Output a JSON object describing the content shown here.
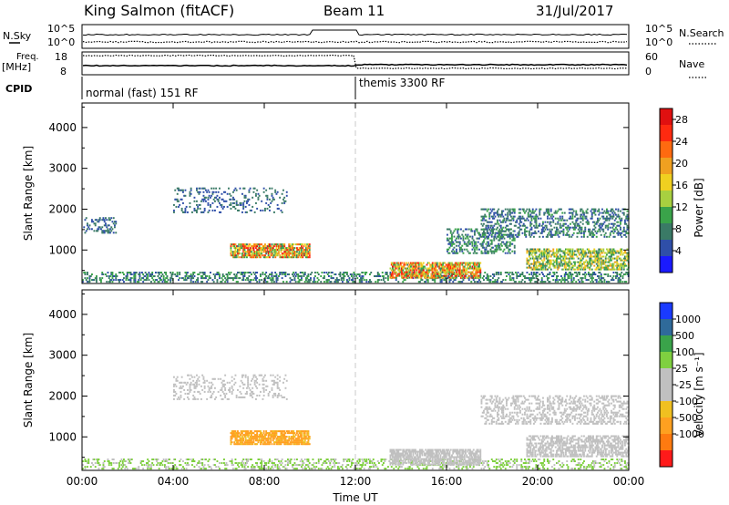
{
  "header": {
    "site": "King Salmon (fitACF)",
    "beam": "Beam 11",
    "date": "31/Jul/2017"
  },
  "summary_panels": {
    "left_labels": {
      "nsky": "N.Sky",
      "freq": "Freq.",
      "freq_unit": "[MHz]",
      "cpid": "CPID"
    },
    "right_labels": {
      "nsearch": "N.Search",
      "nave": "Nave"
    },
    "noise_ticks_left": [
      "10^5",
      "10^0"
    ],
    "noise_ticks_right": [
      "10^5",
      "10^0"
    ],
    "freq_ticks": [
      "18",
      "8"
    ],
    "nave_ticks": [
      "60",
      "0"
    ],
    "cpid_segments": [
      {
        "label": "normal (fast) 151 RF",
        "start_hour": 0
      },
      {
        "label": "themis 3300 RF",
        "start_hour": 12
      }
    ]
  },
  "colors": {
    "axis": "#000000",
    "noon_line": "#c8c8c8",
    "power_scale": [
      "#1a1aff",
      "#2f4fa8",
      "#3a7a66",
      "#3aa34a",
      "#a8d040",
      "#f0d020",
      "#f0a020",
      "#ff6a10",
      "#ff2a10",
      "#e01010"
    ],
    "velocity_scale": [
      "#ff1a1a",
      "#ff7a10",
      "#ffa020",
      "#f0c020",
      "#c0c0c0",
      "#c0c0c0",
      "#7fd040",
      "#3aa34a",
      "#2f6a9a",
      "#1a3aff"
    ]
  },
  "chart_data": [
    {
      "type": "heatmap",
      "name": "power",
      "ylabel": "Slant Range [km]",
      "xlabel": "",
      "x_ticks": [
        "00:00",
        "04:00",
        "08:00",
        "12:00",
        "16:00",
        "20:00",
        "00:00"
      ],
      "y_ticks": [
        "1000",
        "2000",
        "3000",
        "4000"
      ],
      "xlim_hours": [
        0,
        24
      ],
      "ylim_km": [
        180,
        4600
      ],
      "colorbar_label": "Power [dB]",
      "colorbar_ticks": [
        "4",
        "8",
        "12",
        "16",
        "20",
        "24",
        "28"
      ],
      "colorbar_range": [
        0,
        30
      ],
      "features": [
        {
          "t0": 0.0,
          "t1": 24.0,
          "r0": 200,
          "r1": 450,
          "v0": 4,
          "v1": 12,
          "density": 0.35
        },
        {
          "t0": 0.0,
          "t1": 1.5,
          "r0": 1400,
          "r1": 1800,
          "v0": 4,
          "v1": 8,
          "density": 0.25
        },
        {
          "t0": 4.0,
          "t1": 9.0,
          "r0": 1900,
          "r1": 2500,
          "v0": 4,
          "v1": 8,
          "density": 0.2
        },
        {
          "t0": 6.5,
          "t1": 10.0,
          "r0": 800,
          "r1": 1150,
          "v0": 8,
          "v1": 28,
          "density": 0.75
        },
        {
          "t0": 13.5,
          "t1": 17.5,
          "r0": 300,
          "r1": 700,
          "v0": 8,
          "v1": 28,
          "density": 0.7
        },
        {
          "t0": 16.0,
          "t1": 19.0,
          "r0": 900,
          "r1": 1500,
          "v0": 4,
          "v1": 12,
          "density": 0.35
        },
        {
          "t0": 17.5,
          "t1": 24.0,
          "r0": 1300,
          "r1": 2000,
          "v0": 4,
          "v1": 10,
          "density": 0.35
        },
        {
          "t0": 19.5,
          "t1": 24.0,
          "r0": 500,
          "r1": 1000,
          "v0": 6,
          "v1": 20,
          "density": 0.55
        }
      ]
    },
    {
      "type": "heatmap",
      "name": "velocity",
      "ylabel": "Slant Range [km]",
      "xlabel": "Time UT",
      "x_ticks": [
        "00:00",
        "04:00",
        "08:00",
        "12:00",
        "16:00",
        "20:00",
        "00:00"
      ],
      "y_ticks": [
        "1000",
        "2000",
        "3000",
        "4000"
      ],
      "xlim_hours": [
        0,
        24
      ],
      "ylim_km": [
        180,
        4600
      ],
      "colorbar_label": "Velocity [m s⁻¹]",
      "colorbar_ticks": [
        "1000",
        "500",
        "100",
        "25",
        "-25",
        "-100",
        "-500",
        "-1000"
      ],
      "features": [
        {
          "t0": 0.0,
          "t1": 24.0,
          "r0": 200,
          "r1": 450,
          "v0": -25,
          "v1": 100,
          "density": 0.3
        },
        {
          "t0": 6.5,
          "t1": 10.0,
          "r0": 800,
          "r1": 1150,
          "v0": -150,
          "v1": -90,
          "density": 0.75
        },
        {
          "t0": 4.0,
          "t1": 9.0,
          "r0": 1900,
          "r1": 2500,
          "v0": -25,
          "v1": 25,
          "density": 0.2
        },
        {
          "t0": 13.5,
          "t1": 17.5,
          "r0": 300,
          "r1": 700,
          "v0": -25,
          "v1": 25,
          "density": 0.7
        },
        {
          "t0": 17.5,
          "t1": 24.0,
          "r0": 1300,
          "r1": 2000,
          "v0": -25,
          "v1": 25,
          "density": 0.35
        },
        {
          "t0": 19.5,
          "t1": 24.0,
          "r0": 500,
          "r1": 1000,
          "v0": -25,
          "v1": 25,
          "density": 0.55
        }
      ]
    }
  ]
}
